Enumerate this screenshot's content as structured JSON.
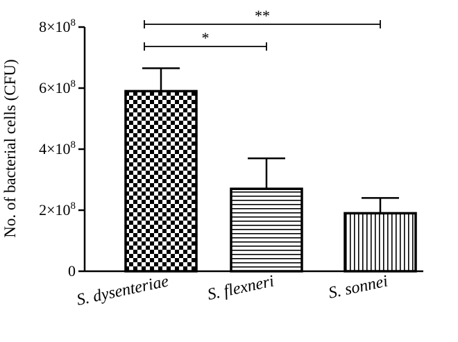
{
  "chart_data": {
    "type": "bar",
    "title": "",
    "xlabel": "",
    "ylabel": "No. of bacterial cells (CFU)",
    "categories": [
      "S. dysenteriae",
      "S. flexneri",
      "S. sonnei"
    ],
    "values": [
      590000000,
      270000000,
      190000000
    ],
    "errors": [
      75000000,
      100000000,
      50000000
    ],
    "ylim": [
      0,
      800000000
    ],
    "yticks": [
      0,
      200000000,
      400000000,
      600000000,
      800000000
    ],
    "ytick_labels": [
      {
        "base": "0",
        "exp": ""
      },
      {
        "base": "2×10",
        "exp": "8"
      },
      {
        "base": "4×10",
        "exp": "8"
      },
      {
        "base": "6×10",
        "exp": "8"
      },
      {
        "base": "8×10",
        "exp": "8"
      }
    ],
    "patterns": [
      "checkerboard",
      "horizontal-stripes",
      "vertical-stripes"
    ],
    "significance": [
      {
        "from": 0,
        "to": 1,
        "label": "*"
      },
      {
        "from": 0,
        "to": 2,
        "label": "**"
      }
    ],
    "grid": false,
    "legend": "none"
  }
}
